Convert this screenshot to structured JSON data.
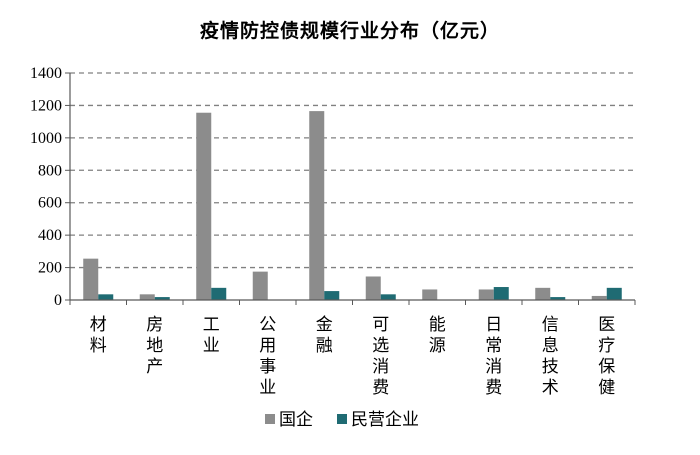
{
  "colors": {
    "国企": "#8c8c8c",
    "民营企业": "#1f6b73",
    "grid": "#808080",
    "axis": "#595959"
  },
  "chart_data": {
    "type": "bar",
    "title": "疫情防控债规模行业分布（亿元）",
    "xlabel": "",
    "ylabel": "",
    "ylim": [
      0,
      1400
    ],
    "yticks": [
      0,
      200,
      400,
      600,
      800,
      1000,
      1200,
      1400
    ],
    "grid": true,
    "legend": "bottom",
    "categories": [
      "材料",
      "房地产",
      "工业",
      "公用事业",
      "金融",
      "可选消费",
      "能源",
      "日常消费",
      "信息技术",
      "医疗保健"
    ],
    "series": [
      {
        "name": "国企",
        "values": [
          255,
          35,
          1155,
          175,
          1165,
          145,
          65,
          65,
          75,
          25
        ]
      },
      {
        "name": "民营企业",
        "values": [
          35,
          18,
          75,
          0,
          55,
          35,
          0,
          80,
          18,
          75
        ]
      }
    ]
  }
}
